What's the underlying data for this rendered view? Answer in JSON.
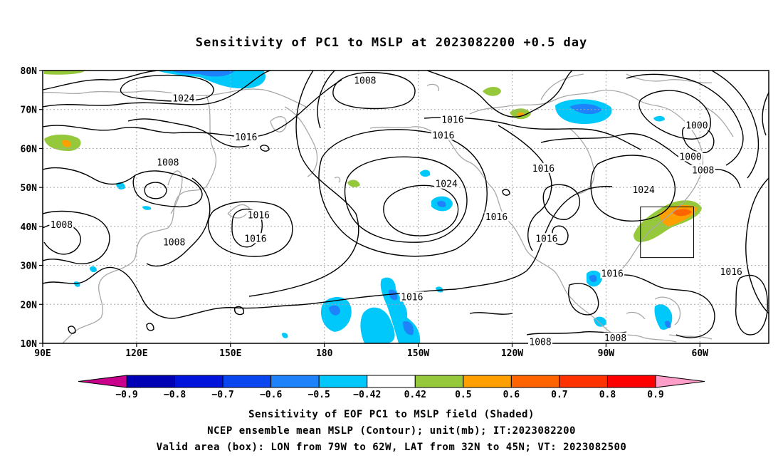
{
  "title": "Sensitivity of PC1 to MSLP at 2023082200 +0.5 day",
  "map": {
    "lat_labels": [
      "80N",
      "70N",
      "60N",
      "50N",
      "40N",
      "30N",
      "20N",
      "10N"
    ],
    "lon_labels": [
      "90E",
      "120E",
      "150E",
      "180",
      "150W",
      "120W",
      "90W",
      "60W"
    ],
    "valid_box": {
      "lon_from": "79W",
      "lon_to": "62W",
      "lat_from": "32N",
      "lat_to": "45N"
    },
    "contour_labels": [
      {
        "text": "1008",
        "lon": 193,
        "lat": 77.5
      },
      {
        "text": "1024",
        "lon": 135,
        "lat": 73
      },
      {
        "text": "1016",
        "lon": 221,
        "lat": 67.5
      },
      {
        "text": "1016",
        "lon": 218,
        "lat": 63.5
      },
      {
        "text": "1000",
        "lon": 299,
        "lat": 66
      },
      {
        "text": "1016",
        "lon": 155,
        "lat": 63
      },
      {
        "text": "1008",
        "lon": 130,
        "lat": 56.5
      },
      {
        "text": "1000",
        "lon": 297,
        "lat": 58
      },
      {
        "text": "1016",
        "lon": 250,
        "lat": 55
      },
      {
        "text": "1008",
        "lon": 301,
        "lat": 54.5
      },
      {
        "text": "1024",
        "lon": 219,
        "lat": 51
      },
      {
        "text": "1024",
        "lon": 282,
        "lat": 49.5
      },
      {
        "text": "1016",
        "lon": 159,
        "lat": 43
      },
      {
        "text": "1016",
        "lon": 235,
        "lat": 42.5
      },
      {
        "text": "1008",
        "lon": 96,
        "lat": 40.5
      },
      {
        "text": "1016",
        "lon": 251,
        "lat": 37
      },
      {
        "text": "1016",
        "lon": 158,
        "lat": 37
      },
      {
        "text": "1008",
        "lon": 132,
        "lat": 36
      },
      {
        "text": "1016",
        "lon": 272,
        "lat": 28
      },
      {
        "text": "1016",
        "lon": 310,
        "lat": 28.5
      },
      {
        "text": "1016",
        "lon": 208,
        "lat": 22
      },
      {
        "text": "1008",
        "lon": 273,
        "lat": 11.5
      },
      {
        "text": "1008",
        "lon": 249,
        "lat": 10.5
      }
    ]
  },
  "colorbar": {
    "labels": [
      "−0.9",
      "−0.8",
      "−0.7",
      "−0.6",
      "−0.5",
      "−0.42",
      "0.42",
      "0.5",
      "0.6",
      "0.7",
      "0.8",
      "0.9"
    ],
    "colors": {
      "under": "#c8008c",
      "bins": [
        "#0000b4",
        "#0014dc",
        "#0a46f0",
        "#1e82fa",
        "#00c8fa",
        "#ffffff",
        "#96c83c",
        "#ffa000",
        "#ff6400",
        "#ff3200",
        "#ff0000"
      ],
      "over": "#ff9ec8"
    }
  },
  "captions": [
    "Sensitivity of EOF PC1 to MSLP field (Shaded)",
    "NCEP ensemble mean MSLP (Contour); unit(mb); IT:2023082200",
    "Valid area (box): LON from 79W to 62W, LAT from 32N to 45N; VT: 2023082500"
  ]
}
